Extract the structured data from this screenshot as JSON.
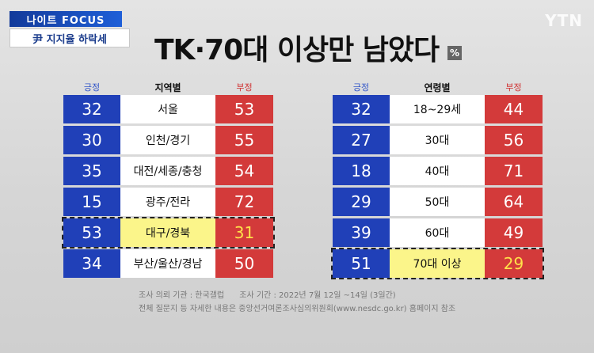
{
  "program": {
    "badge_top": "나이트 FOCUS",
    "badge_bottom": "尹 지지율 하락세"
  },
  "logo": "YTN",
  "headline": "TK·70대 이상만 남았다",
  "unit": "%",
  "region_table": {
    "positive_label": "긍정",
    "category_label": "지역별",
    "negative_label": "부정",
    "rows": [
      {
        "pos": "32",
        "label": "서울",
        "neg": "53"
      },
      {
        "pos": "30",
        "label": "인천/경기",
        "neg": "55"
      },
      {
        "pos": "35",
        "label": "대전/세종/충청",
        "neg": "54"
      },
      {
        "pos": "15",
        "label": "광주/전라",
        "neg": "72"
      },
      {
        "pos": "53",
        "label": "대구/경북",
        "neg": "31"
      },
      {
        "pos": "34",
        "label": "부산/울산/경남",
        "neg": "50"
      }
    ],
    "highlighted_row": 4
  },
  "age_table": {
    "positive_label": "긍정",
    "category_label": "연령별",
    "negative_label": "부정",
    "rows": [
      {
        "pos": "32",
        "label": "18~29세",
        "neg": "44"
      },
      {
        "pos": "27",
        "label": "30대",
        "neg": "56"
      },
      {
        "pos": "18",
        "label": "40대",
        "neg": "71"
      },
      {
        "pos": "29",
        "label": "50대",
        "neg": "64"
      },
      {
        "pos": "39",
        "label": "60대",
        "neg": "49"
      },
      {
        "pos": "51",
        "label": "70대 이상",
        "neg": "29"
      }
    ],
    "highlighted_row": 5
  },
  "notes": {
    "org": "조사 의뢰 기관 : 한국갤럽",
    "period": "조사 기간 : 2022년 7월 12일 ~14일 (3일간)",
    "reference": "전체 질문지 등 자세한 내용은 중앙선거여론조사심의위원회(www.nesdc.go.kr) 홈페이지 참조"
  },
  "colors": {
    "positive": "#2040b8",
    "negative": "#d33a3a",
    "highlight": "#fbf58a"
  }
}
